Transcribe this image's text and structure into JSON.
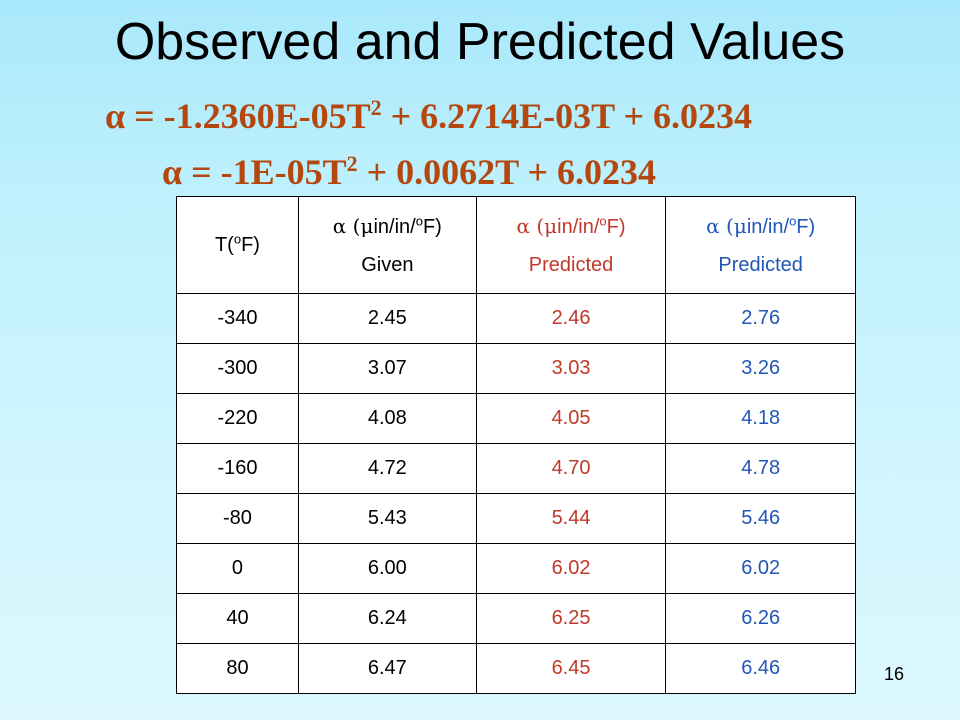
{
  "title": "Observed and Predicted Values",
  "equation1": {
    "lhs": "α = -1.2360E-05T",
    "exp": "2",
    "rhs": " + 6.2714E-03T + 6.0234"
  },
  "equation2": {
    "lhs": "α = -1E-05T",
    "exp": "2",
    "rhs": " + 0.0062T + 6.0234"
  },
  "table": {
    "header": {
      "col1": {
        "unit_pre": "T(",
        "deg": "o",
        "unit_post": "F)"
      },
      "col2": {
        "alpha": "α (",
        "mu": "μ",
        "unit_pre": "in/in/",
        "deg": "o",
        "unit_post": "F)",
        "sub": "Given"
      },
      "col3": {
        "alpha": "α (",
        "mu": "μ",
        "unit_pre": "in/in/",
        "deg": "o",
        "unit_post": "F)",
        "sub": "Predicted"
      },
      "col4": {
        "alpha": "α (",
        "mu": "μ",
        "unit_pre": "in/in/",
        "deg": "o",
        "unit_post": "F)",
        "sub": "Predicted"
      }
    },
    "rows": [
      [
        "-340",
        "2.45",
        "2.46",
        "2.76"
      ],
      [
        "-300",
        "3.07",
        "3.03",
        "3.26"
      ],
      [
        "-220",
        "4.08",
        "4.05",
        "4.18"
      ],
      [
        "-160",
        "4.72",
        "4.70",
        "4.78"
      ],
      [
        "-80",
        "5.43",
        "5.44",
        "5.46"
      ],
      [
        "0",
        "6.00",
        "6.02",
        "6.02"
      ],
      [
        "40",
        "6.24",
        "6.25",
        "6.26"
      ],
      [
        "80",
        "6.47",
        "6.45",
        "6.46"
      ]
    ]
  },
  "page_number": "16",
  "colors": {
    "equation": "#b3470d",
    "predicted_fit1": "#c0392b",
    "predicted_fit2": "#2156b8"
  }
}
